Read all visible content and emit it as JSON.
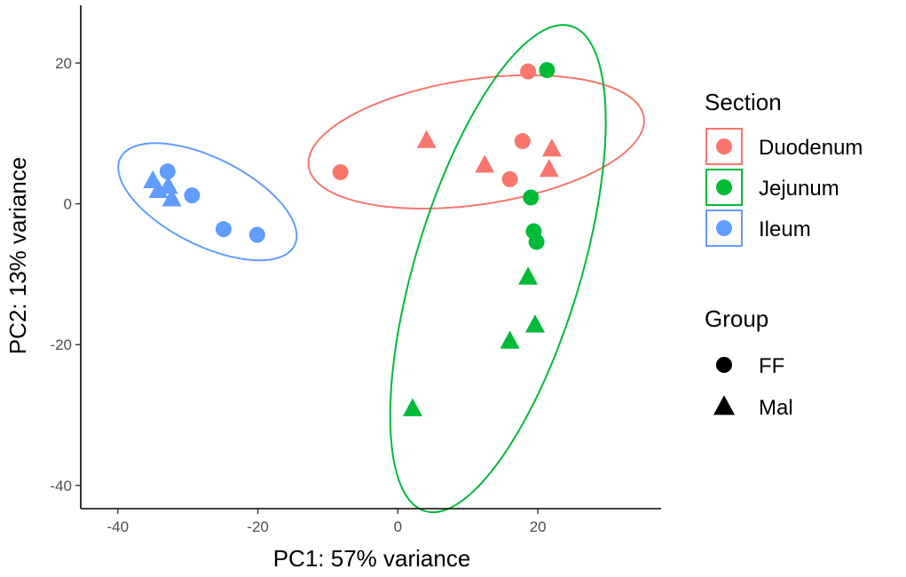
{
  "chart_data": {
    "type": "scatter",
    "title": "",
    "xlabel": "PC1: 57% variance",
    "ylabel": "PC2: 13% variance",
    "xlim": [
      -45.3,
      37.6
    ],
    "ylim": [
      -43.3,
      28.2
    ],
    "xticks": [
      -40,
      -20,
      0,
      20
    ],
    "yticks": [
      -40,
      -20,
      0,
      20
    ],
    "grid": false,
    "legend_position": "right",
    "legends": {
      "section": {
        "title": "Section",
        "entries": [
          {
            "key": "Duodenum",
            "label": "Duodenum",
            "color": "#F8766D"
          },
          {
            "key": "Jejunum",
            "label": "Jejunum",
            "color": "#00BA38"
          },
          {
            "key": "Ileum",
            "label": "Ileum",
            "color": "#619CFF"
          }
        ]
      },
      "group": {
        "title": "Group",
        "entries": [
          {
            "key": "FF",
            "label": "FF",
            "shape": "circle"
          },
          {
            "key": "Mal",
            "label": "Mal",
            "shape": "triangle"
          }
        ]
      }
    },
    "ellipses": [
      {
        "section": "Duodenum",
        "center": [
          11.2,
          8.8
        ],
        "semi_major": 24.2,
        "semi_minor": 8.9,
        "angle_deg": 8.3
      },
      {
        "section": "Jejunum",
        "center": [
          14.3,
          -9.2
        ],
        "semi_major": 36.0,
        "semi_minor": 11.8,
        "angle_deg": 73.1
      },
      {
        "section": "Ileum",
        "center": [
          -27.2,
          0.3
        ],
        "semi_major": 13.9,
        "semi_minor": 6.2,
        "angle_deg": -26.5
      }
    ],
    "points": [
      {
        "x": -8.2,
        "y": 4.5,
        "section": "Duodenum",
        "group": "FF"
      },
      {
        "x": 16.0,
        "y": 3.5,
        "section": "Duodenum",
        "group": "FF"
      },
      {
        "x": 17.8,
        "y": 8.9,
        "section": "Duodenum",
        "group": "FF"
      },
      {
        "x": 18.6,
        "y": 18.8,
        "section": "Duodenum",
        "group": "FF"
      },
      {
        "x": 4.1,
        "y": 8.9,
        "section": "Duodenum",
        "group": "Mal"
      },
      {
        "x": 12.4,
        "y": 5.4,
        "section": "Duodenum",
        "group": "Mal"
      },
      {
        "x": 21.6,
        "y": 4.8,
        "section": "Duodenum",
        "group": "Mal"
      },
      {
        "x": 22.0,
        "y": 7.7,
        "section": "Duodenum",
        "group": "Mal"
      },
      {
        "x": 21.3,
        "y": 19.0,
        "section": "Jejunum",
        "group": "FF"
      },
      {
        "x": 19.0,
        "y": 0.9,
        "section": "Jejunum",
        "group": "FF"
      },
      {
        "x": 19.4,
        "y": -3.9,
        "section": "Jejunum",
        "group": "FF"
      },
      {
        "x": 19.8,
        "y": -5.4,
        "section": "Jejunum",
        "group": "FF"
      },
      {
        "x": 18.6,
        "y": -10.5,
        "section": "Jejunum",
        "group": "Mal"
      },
      {
        "x": 19.6,
        "y": -17.3,
        "section": "Jejunum",
        "group": "Mal"
      },
      {
        "x": 16.0,
        "y": -19.6,
        "section": "Jejunum",
        "group": "Mal"
      },
      {
        "x": 2.1,
        "y": -29.2,
        "section": "Jejunum",
        "group": "Mal"
      },
      {
        "x": -32.9,
        "y": 4.6,
        "section": "Ileum",
        "group": "FF"
      },
      {
        "x": -29.4,
        "y": 1.2,
        "section": "Ileum",
        "group": "FF"
      },
      {
        "x": -24.9,
        "y": -3.6,
        "section": "Ileum",
        "group": "FF"
      },
      {
        "x": -20.1,
        "y": -4.4,
        "section": "Ileum",
        "group": "FF"
      },
      {
        "x": -35.0,
        "y": 3.2,
        "section": "Ileum",
        "group": "Mal"
      },
      {
        "x": -34.2,
        "y": 1.8,
        "section": "Ileum",
        "group": "Mal"
      },
      {
        "x": -32.8,
        "y": 2.4,
        "section": "Ileum",
        "group": "Mal"
      },
      {
        "x": -32.3,
        "y": 0.6,
        "section": "Ileum",
        "group": "Mal"
      }
    ]
  }
}
